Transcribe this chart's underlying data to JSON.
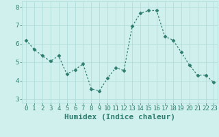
{
  "x": [
    0,
    1,
    2,
    3,
    4,
    5,
    6,
    7,
    8,
    9,
    10,
    11,
    12,
    13,
    14,
    15,
    16,
    17,
    18,
    19,
    20,
    21,
    22,
    23
  ],
  "y": [
    6.2,
    5.7,
    5.35,
    5.05,
    5.35,
    4.35,
    4.6,
    4.9,
    3.55,
    3.45,
    4.15,
    4.7,
    4.55,
    6.95,
    7.65,
    7.8,
    7.8,
    6.4,
    6.2,
    5.55,
    4.85,
    4.3,
    4.3,
    3.9
  ],
  "line_color": "#2d7c6e",
  "marker": "D",
  "marker_size": 2.5,
  "line_style": "--",
  "bg_color": "#cff0ec",
  "grid_color": "#b0ddd8",
  "xlabel": "Humidex (Indice chaleur)",
  "xlabel_fontsize": 8,
  "yticks": [
    3,
    4,
    5,
    6,
    7,
    8
  ],
  "xticks": [
    0,
    1,
    2,
    3,
    4,
    5,
    6,
    7,
    8,
    9,
    10,
    11,
    12,
    13,
    14,
    15,
    16,
    17,
    18,
    19,
    20,
    21,
    22,
    23
  ],
  "xlim": [
    -0.5,
    23.5
  ],
  "ylim": [
    2.8,
    8.3
  ],
  "tick_fontsize": 6.5,
  "tick_color": "#2d7c6e",
  "label_color": "#2d7c6e"
}
